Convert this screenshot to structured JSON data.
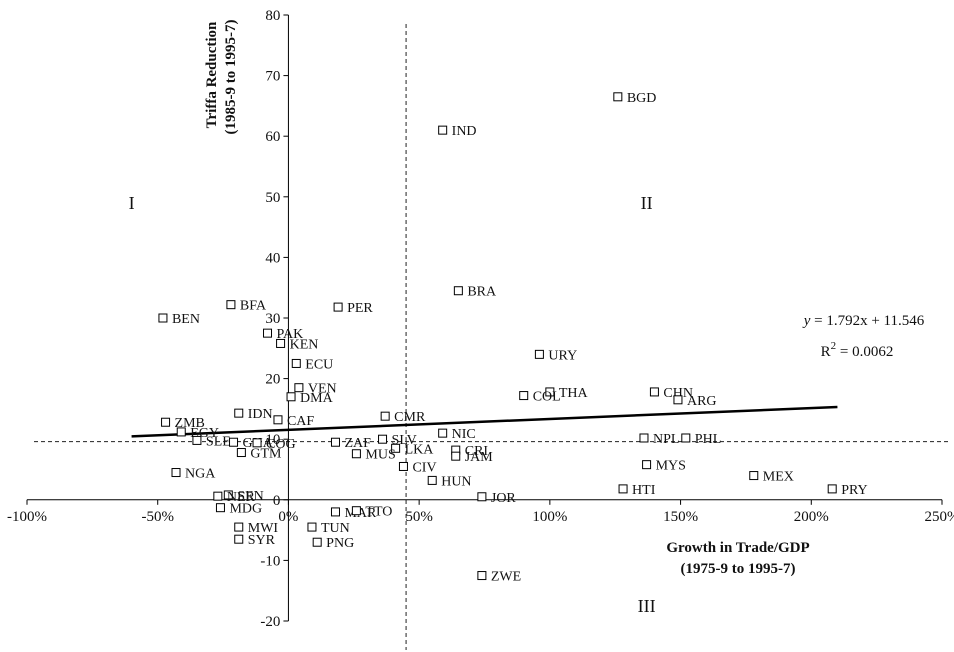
{
  "chart_data": {
    "type": "scatter",
    "title": "",
    "xlabel": "Growth in Trade/GDP",
    "xlabel_sub": "(1975-9 to 1995-7)",
    "ylabel": "Triffa Reduction",
    "ylabel_sub": "(1985-9 to 1995-7)",
    "xlim": [
      -1.0,
      2.5
    ],
    "ylim": [
      -20,
      80
    ],
    "x_ticks": [
      -1.0,
      -0.5,
      0,
      0.5,
      1.0,
      1.5,
      2.0,
      2.5
    ],
    "x_tick_labels": [
      "-100%",
      "-50%",
      "0%",
      "50%",
      "100%",
      "150%",
      "200%",
      "250%"
    ],
    "y_ticks": [
      -20,
      -10,
      0,
      10,
      20,
      30,
      40,
      50,
      60,
      70,
      80
    ],
    "y_tick_labels": [
      "-20",
      "-10",
      "0",
      "10",
      "20",
      "30",
      "40",
      "50",
      "60",
      "70",
      "80"
    ],
    "x_reference_line": 0.45,
    "y_reference_line": 9.6,
    "grid": false,
    "legend": "none",
    "quadrant_labels": [
      {
        "text": "I",
        "x": -0.6,
        "y": 48
      },
      {
        "text": "II",
        "x": 1.37,
        "y": 48
      },
      {
        "text": "III",
        "x": 1.37,
        "y": -18.5
      }
    ],
    "regression": {
      "equation_prefix": "y",
      "equation_rest": " = 1.792x + 11.546",
      "r2_base": "R",
      "r2_exp": "2",
      "r2_rest": " = 0.0062",
      "slope": 1.792,
      "intercept": 11.546,
      "x_range": [
        -0.6,
        2.1
      ]
    },
    "points": [
      {
        "label": "BGD",
        "x": 1.26,
        "y": 66.5
      },
      {
        "label": "IND",
        "x": 0.59,
        "y": 61.0
      },
      {
        "label": "BRA",
        "x": 0.65,
        "y": 34.5
      },
      {
        "label": "PER",
        "x": 0.19,
        "y": 31.8
      },
      {
        "label": "BFA",
        "x": -0.22,
        "y": 32.2
      },
      {
        "label": "BEN",
        "x": -0.48,
        "y": 30.0
      },
      {
        "label": "PAK",
        "x": -0.08,
        "y": 27.5
      },
      {
        "label": "KEN",
        "x": -0.03,
        "y": 25.8
      },
      {
        "label": "ECU",
        "x": 0.03,
        "y": 22.5
      },
      {
        "label": "URY",
        "x": 0.96,
        "y": 24.0
      },
      {
        "label": "VEN",
        "x": 0.04,
        "y": 18.5
      },
      {
        "label": "DMA",
        "x": 0.01,
        "y": 17.0
      },
      {
        "label": "THA",
        "x": 1.0,
        "y": 17.8
      },
      {
        "label": "COL",
        "x": 0.9,
        "y": 17.2
      },
      {
        "label": "CHN",
        "x": 1.4,
        "y": 17.8
      },
      {
        "label": "ARG",
        "x": 1.49,
        "y": 16.5
      },
      {
        "label": "IDN",
        "x": -0.19,
        "y": 14.3
      },
      {
        "label": "CAF",
        "x": -0.04,
        "y": 13.2
      },
      {
        "label": "CMR",
        "x": 0.37,
        "y": 13.8
      },
      {
        "label": "ZMB",
        "x": -0.47,
        "y": 12.8
      },
      {
        "label": "EGY",
        "x": -0.41,
        "y": 11.2
      },
      {
        "label": "NIC",
        "x": 0.59,
        "y": 11.0
      },
      {
        "label": "NPL",
        "x": 1.36,
        "y": 10.2
      },
      {
        "label": "PHL",
        "x": 1.52,
        "y": 10.2
      },
      {
        "label": "SLE",
        "x": -0.35,
        "y": 9.8
      },
      {
        "label": "GHA",
        "x": -0.21,
        "y": 9.5
      },
      {
        "label": "COG",
        "x": -0.12,
        "y": 9.4
      },
      {
        "label": "ZAF",
        "x": 0.18,
        "y": 9.5
      },
      {
        "label": "SLV",
        "x": 0.36,
        "y": 10.0
      },
      {
        "label": "LKA",
        "x": 0.41,
        "y": 8.5
      },
      {
        "label": "CRI",
        "x": 0.64,
        "y": 8.2
      },
      {
        "label": "GTM",
        "x": -0.18,
        "y": 7.8
      },
      {
        "label": "MUS",
        "x": 0.26,
        "y": 7.6
      },
      {
        "label": "JAM",
        "x": 0.64,
        "y": 7.2
      },
      {
        "label": "CIV",
        "x": 0.44,
        "y": 5.5
      },
      {
        "label": "MYS",
        "x": 1.37,
        "y": 5.8
      },
      {
        "label": "NGA",
        "x": -0.43,
        "y": 4.5
      },
      {
        "label": "MEX",
        "x": 1.78,
        "y": 4.0
      },
      {
        "label": "HUN",
        "x": 0.55,
        "y": 3.2
      },
      {
        "label": "HTI",
        "x": 1.28,
        "y": 1.8
      },
      {
        "label": "PRY",
        "x": 2.08,
        "y": 1.8
      },
      {
        "label": "SEN",
        "x": -0.23,
        "y": 0.8
      },
      {
        "label": "NER",
        "x": -0.27,
        "y": 0.6
      },
      {
        "label": "JOR",
        "x": 0.74,
        "y": 0.5
      },
      {
        "label": "MDG",
        "x": -0.26,
        "y": -1.3
      },
      {
        "label": "MAR",
        "x": 0.18,
        "y": -2.0
      },
      {
        "label": "TTO",
        "x": 0.26,
        "y": -1.8
      },
      {
        "label": "MWI",
        "x": -0.19,
        "y": -4.5
      },
      {
        "label": "TUN",
        "x": 0.09,
        "y": -4.5
      },
      {
        "label": "SYR",
        "x": -0.19,
        "y": -6.5
      },
      {
        "label": "PNG",
        "x": 0.11,
        "y": -7.0
      },
      {
        "label": "ZWE",
        "x": 0.74,
        "y": -12.5
      }
    ]
  }
}
